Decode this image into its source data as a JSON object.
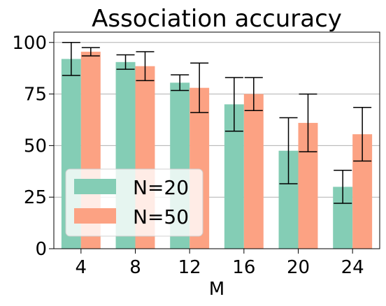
{
  "chart_data": {
    "type": "bar",
    "title": "Association accuracy",
    "xlabel": "M",
    "ylabel": "",
    "categories": [
      "4",
      "8",
      "12",
      "16",
      "20",
      "24"
    ],
    "ylim": [
      0,
      105
    ],
    "yticks": [
      0,
      25,
      50,
      75,
      100
    ],
    "grid": "horizontal",
    "legend_position": "lower-left",
    "series": [
      {
        "name": "N=20",
        "color": "#84cdb5",
        "values": [
          92,
          90.5,
          80.5,
          70,
          47.5,
          30
        ],
        "errors": [
          8,
          3.5,
          3.8,
          13,
          16,
          8
        ]
      },
      {
        "name": "N=50",
        "color": "#fca283",
        "values": [
          95.5,
          88.5,
          78,
          75,
          61,
          55.5
        ],
        "errors": [
          2,
          7,
          12,
          8,
          14,
          13
        ]
      }
    ]
  }
}
